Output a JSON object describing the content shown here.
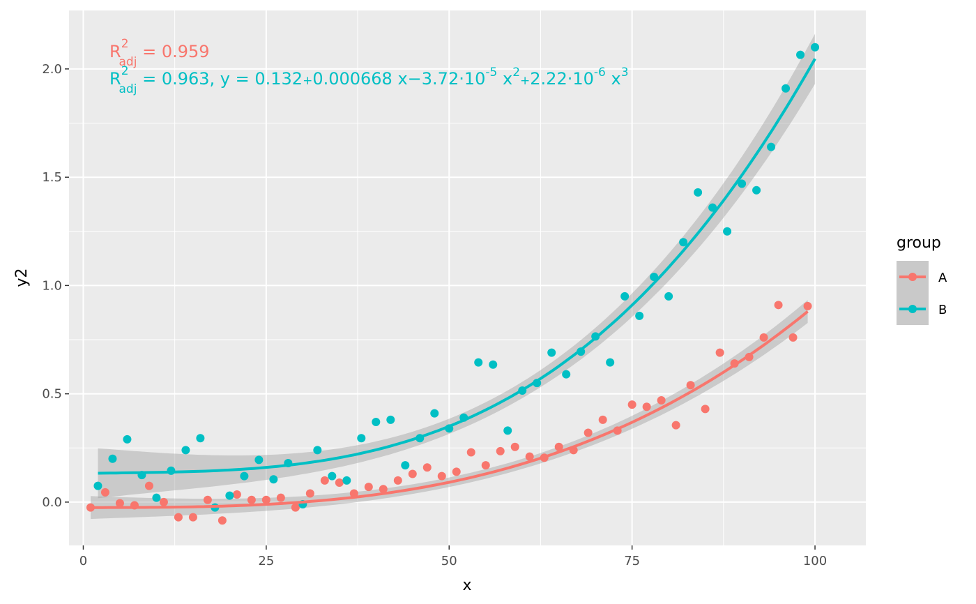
{
  "chart_data": {
    "type": "scatter",
    "xlabel": "x",
    "ylabel": "y2",
    "xlim": [
      -1.95,
      106.95
    ],
    "ylim": [
      -0.2,
      2.27
    ],
    "x_ticks": [
      0,
      25,
      50,
      75,
      100
    ],
    "x_tick_labels": [
      "0",
      "25",
      "50",
      "75",
      "100"
    ],
    "y_ticks": [
      0.0,
      0.5,
      1.0,
      1.5,
      2.0
    ],
    "y_tick_labels": [
      "0.0",
      "0.5",
      "1.0",
      "1.5",
      "2.0"
    ],
    "grid": true,
    "legend": {
      "title": "group",
      "position": "right",
      "entries": [
        "A",
        "B"
      ]
    },
    "series": [
      {
        "name": "A",
        "color": "#F8766D",
        "points": [
          [
            1,
            -0.025
          ],
          [
            3,
            0.045
          ],
          [
            5,
            -0.005
          ],
          [
            7,
            -0.015
          ],
          [
            9,
            0.075
          ],
          [
            11,
            0.0
          ],
          [
            13,
            -0.07
          ],
          [
            15,
            -0.07
          ],
          [
            17,
            0.01
          ],
          [
            19,
            -0.085
          ],
          [
            21,
            0.035
          ],
          [
            23,
            0.01
          ],
          [
            25,
            0.01
          ],
          [
            27,
            0.02
          ],
          [
            29,
            -0.025
          ],
          [
            31,
            0.04
          ],
          [
            33,
            0.1
          ],
          [
            35,
            0.09
          ],
          [
            37,
            0.04
          ],
          [
            39,
            0.07
          ],
          [
            41,
            0.06
          ],
          [
            43,
            0.1
          ],
          [
            45,
            0.13
          ],
          [
            47,
            0.16
          ],
          [
            49,
            0.12
          ],
          [
            51,
            0.14
          ],
          [
            53,
            0.23
          ],
          [
            55,
            0.17
          ],
          [
            57,
            0.235
          ],
          [
            59,
            0.255
          ],
          [
            61,
            0.21
          ],
          [
            63,
            0.205
          ],
          [
            65,
            0.255
          ],
          [
            67,
            0.24
          ],
          [
            69,
            0.32
          ],
          [
            71,
            0.38
          ],
          [
            73,
            0.33
          ],
          [
            75,
            0.45
          ],
          [
            77,
            0.44
          ],
          [
            79,
            0.47
          ],
          [
            81,
            0.355
          ],
          [
            83,
            0.54
          ],
          [
            85,
            0.43
          ],
          [
            87,
            0.69
          ],
          [
            89,
            0.64
          ],
          [
            91,
            0.67
          ],
          [
            93,
            0.76
          ],
          [
            95,
            0.91
          ],
          [
            97,
            0.76
          ],
          [
            99,
            0.905
          ]
        ],
        "fit": {
          "x_range": [
            1,
            99
          ],
          "y_start": -0.025,
          "y_end": 0.88
        }
      },
      {
        "name": "B",
        "color": "#00BFC4",
        "points": [
          [
            2,
            0.075
          ],
          [
            4,
            0.2
          ],
          [
            6,
            0.29
          ],
          [
            8,
            0.125
          ],
          [
            10,
            0.02
          ],
          [
            12,
            0.145
          ],
          [
            14,
            0.24
          ],
          [
            16,
            0.295
          ],
          [
            18,
            -0.025
          ],
          [
            20,
            0.03
          ],
          [
            22,
            0.12
          ],
          [
            24,
            0.195
          ],
          [
            26,
            0.105
          ],
          [
            28,
            0.18
          ],
          [
            30,
            -0.01
          ],
          [
            32,
            0.24
          ],
          [
            34,
            0.12
          ],
          [
            36,
            0.1
          ],
          [
            38,
            0.295
          ],
          [
            40,
            0.37
          ],
          [
            42,
            0.38
          ],
          [
            44,
            0.17
          ],
          [
            46,
            0.295
          ],
          [
            48,
            0.41
          ],
          [
            50,
            0.34
          ],
          [
            52,
            0.39
          ],
          [
            54,
            0.645
          ],
          [
            56,
            0.635
          ],
          [
            58,
            0.33
          ],
          [
            60,
            0.515
          ],
          [
            62,
            0.55
          ],
          [
            64,
            0.69
          ],
          [
            66,
            0.59
          ],
          [
            68,
            0.695
          ],
          [
            70,
            0.765
          ],
          [
            72,
            0.645
          ],
          [
            74,
            0.95
          ],
          [
            76,
            0.86
          ],
          [
            78,
            1.04
          ],
          [
            80,
            0.95
          ],
          [
            82,
            1.2
          ],
          [
            84,
            1.43
          ],
          [
            86,
            1.36
          ],
          [
            88,
            1.25
          ],
          [
            90,
            1.47
          ],
          [
            92,
            1.44
          ],
          [
            94,
            1.64
          ],
          [
            96,
            1.91
          ],
          [
            98,
            2.065
          ],
          [
            100,
            2.1
          ]
        ],
        "fit": {
          "b0": 0.132,
          "b1": 0.000668,
          "b2": -3.72e-05,
          "b3": 2.22e-06,
          "x_range": [
            2,
            100
          ]
        }
      }
    ],
    "annotations": {
      "a": {
        "r_label": "R",
        "r_sup": "2",
        "r_sub": "adj",
        "value_text": " = 0.959"
      },
      "b": {
        "r_label": "R",
        "r_sup": "2",
        "r_sub": "adj",
        "eq_part1": " = 0.963, y = 0.132",
        "op_plus1": "+",
        "eq_part2": "0.000668 x",
        "op_minus": "−",
        "eq_part3": "3.72",
        "op_dot1": "·",
        "eq_part4": "10",
        "exp1": "-5",
        "eq_part5": " x",
        "exp2": "2",
        "op_plus2": "+",
        "eq_part6": "2.22",
        "op_dot2": "·",
        "eq_part7": "10",
        "exp3": "-6",
        "eq_part8": " x",
        "exp4": "3"
      }
    },
    "colors": {
      "panel_bg": "#EBEBEB",
      "grid_major": "#FFFFFF",
      "ribbon": "#999999",
      "series_A": "#F8766D",
      "series_B": "#00BFC4"
    }
  }
}
